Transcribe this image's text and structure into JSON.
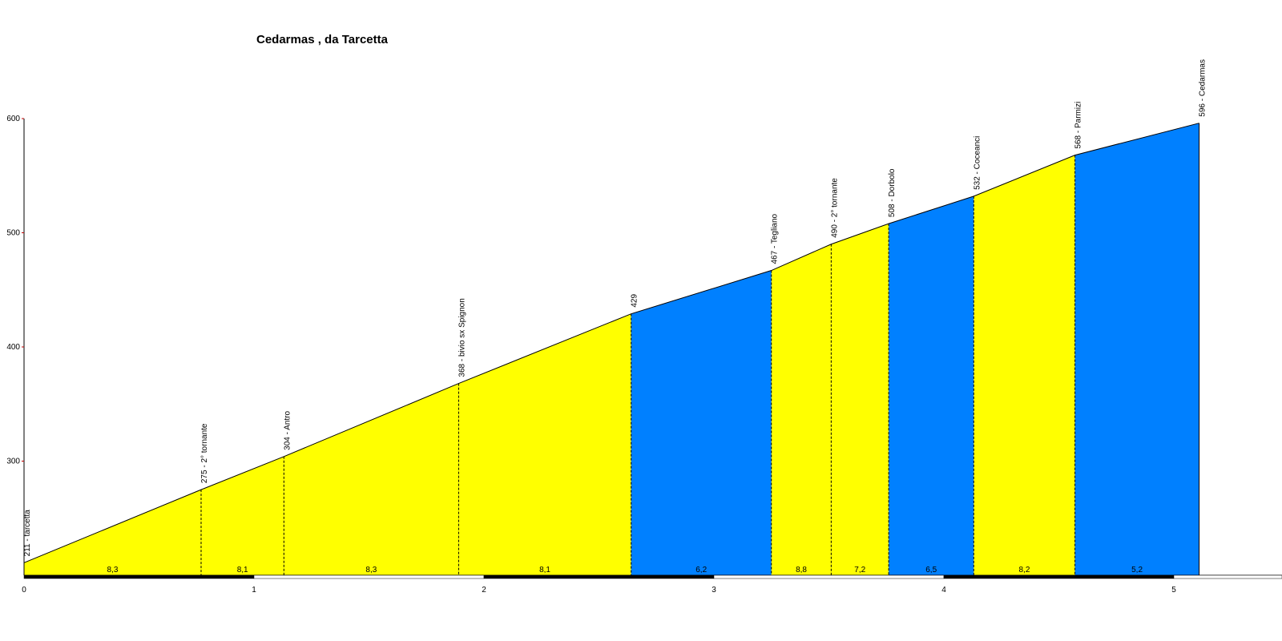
{
  "chart_data": {
    "type": "area",
    "title": "Cedarmas , da Tarcetta",
    "xlabel": "",
    "ylabel": "",
    "xlim": [
      0,
      5.35
    ],
    "ylim": [
      200,
      600
    ],
    "x_ticks": [
      "0",
      "1",
      "2",
      "3",
      "4",
      "5"
    ],
    "y_ticks": [
      "300",
      "400",
      "500",
      "600"
    ],
    "points": [
      {
        "x": 0.0,
        "y": 211,
        "label": "211 - tarcetta"
      },
      {
        "x": 0.77,
        "y": 275,
        "label": "275 - 2° tornante"
      },
      {
        "x": 1.13,
        "y": 304,
        "label": "304 - Antro"
      },
      {
        "x": 1.89,
        "y": 368,
        "label": "368 - bivio sx Spignon"
      },
      {
        "x": 2.64,
        "y": 429,
        "label": "429"
      },
      {
        "x": 3.25,
        "y": 467,
        "label": "467 - Tegliano"
      },
      {
        "x": 3.51,
        "y": 490,
        "label": "490 - 2° tornante"
      },
      {
        "x": 3.76,
        "y": 508,
        "label": "508 - Dorbolo"
      },
      {
        "x": 4.13,
        "y": 532,
        "label": "532 - Coceanci"
      },
      {
        "x": 4.57,
        "y": 568,
        "label": "568 - Parmizi"
      },
      {
        "x": 5.11,
        "y": 596,
        "label": "596 - Cedarmas"
      }
    ],
    "segments": [
      {
        "from": 0.0,
        "to": 0.77,
        "gradient": "8,3",
        "color": "#ffff00"
      },
      {
        "from": 0.77,
        "to": 1.13,
        "gradient": "8,1",
        "color": "#ffff00"
      },
      {
        "from": 1.13,
        "to": 1.89,
        "gradient": "8,3",
        "color": "#ffff00"
      },
      {
        "from": 1.89,
        "to": 2.64,
        "gradient": "8,1",
        "color": "#ffff00"
      },
      {
        "from": 2.64,
        "to": 3.25,
        "gradient": "6,2",
        "color": "#0080ff"
      },
      {
        "from": 3.25,
        "to": 3.51,
        "gradient": "8,8",
        "color": "#ffff00"
      },
      {
        "from": 3.51,
        "to": 3.76,
        "gradient": "7,2",
        "color": "#ffff00"
      },
      {
        "from": 3.76,
        "to": 4.13,
        "gradient": "6,5",
        "color": "#0080ff"
      },
      {
        "from": 4.13,
        "to": 4.57,
        "gradient": "8,2",
        "color": "#ffff00"
      },
      {
        "from": 4.57,
        "to": 5.11,
        "gradient": "5,2",
        "color": "#0080ff"
      }
    ],
    "grid": false,
    "legend": "none"
  }
}
